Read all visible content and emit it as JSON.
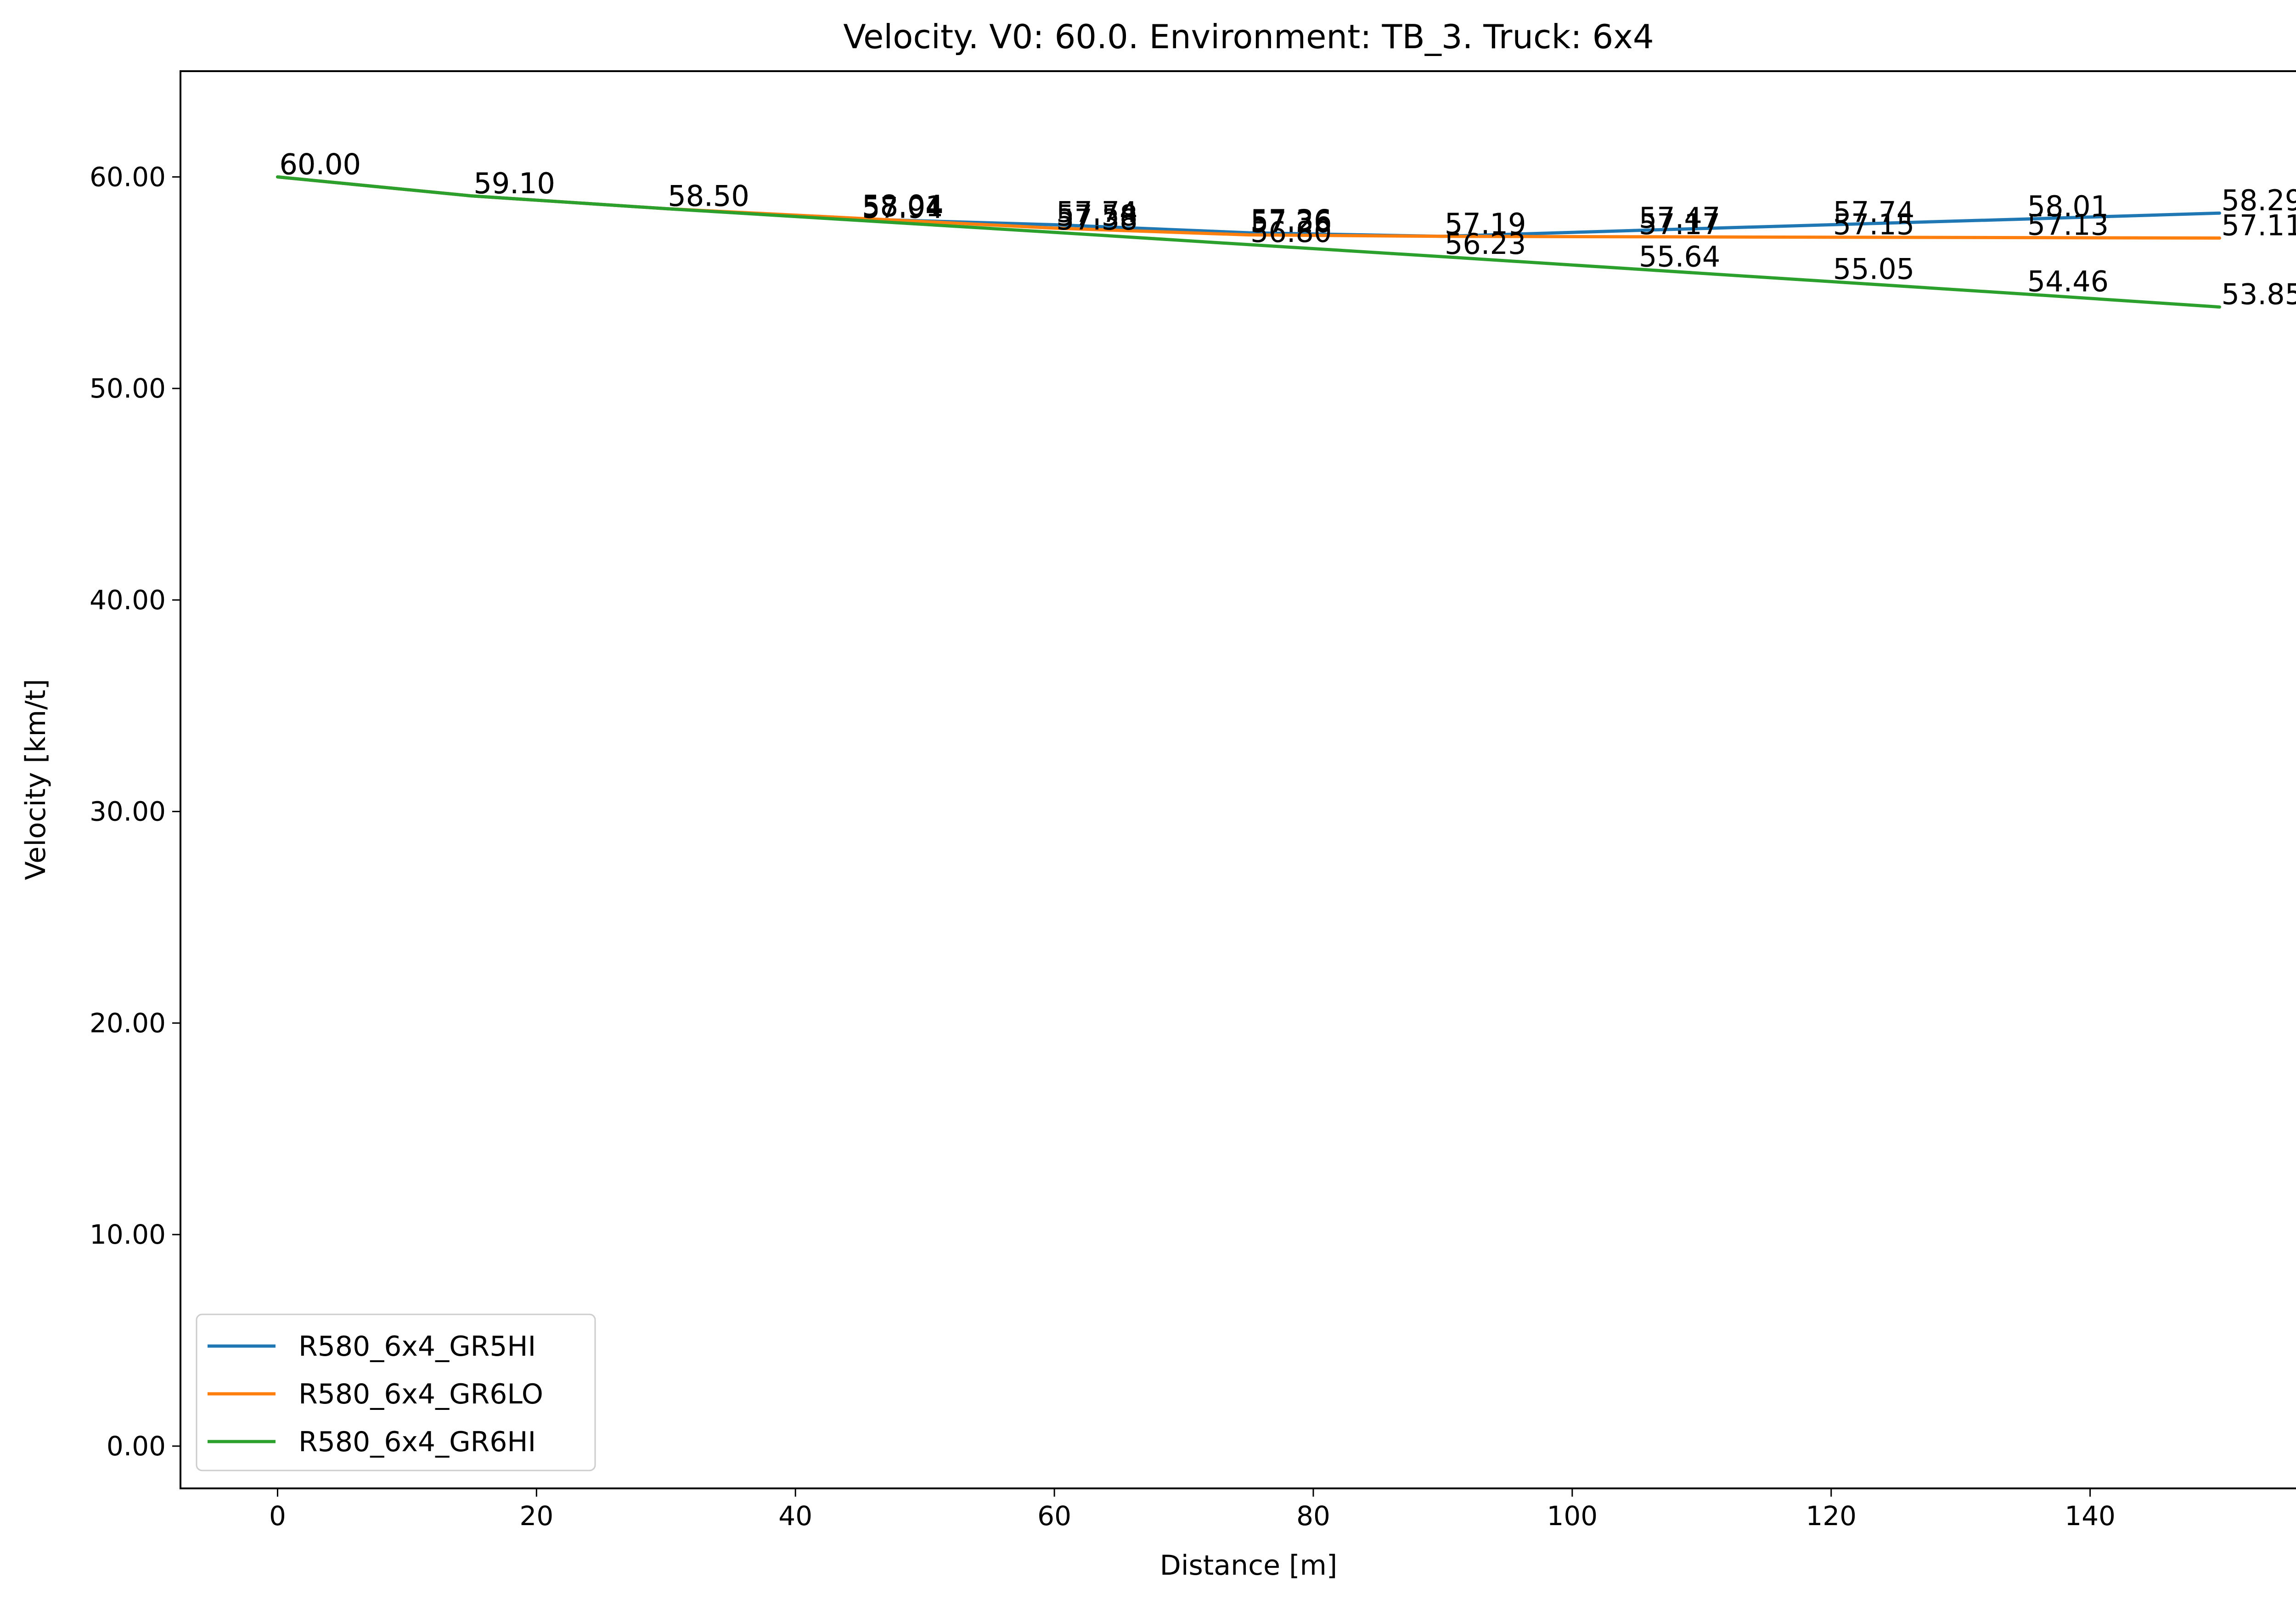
{
  "chart_data": {
    "type": "line",
    "title": "Velocity. V0: 60.0. Environment: TB_3. Truck: 6x4",
    "xlabel": "Distance [m]",
    "ylabel": "Velocity [km/t]",
    "xlim": [
      -7.5,
      157.5
    ],
    "ylim": [
      -2,
      65
    ],
    "xticks": [
      0,
      20,
      40,
      60,
      80,
      100,
      120,
      140
    ],
    "yticks": [
      0,
      10,
      20,
      30,
      40,
      50,
      60
    ],
    "ytick_format": "2dp",
    "grid": false,
    "legend_position": "lower-left",
    "x": [
      0,
      15,
      30,
      45,
      60,
      75,
      90,
      105,
      120,
      135,
      150
    ],
    "series": [
      {
        "name": "R580_6x4_GR5HI",
        "color": "#1f77b4",
        "values": [
          60.0,
          59.1,
          58.5,
          58.01,
          57.74,
          57.36,
          57.19,
          57.47,
          57.74,
          58.01,
          58.29
        ],
        "labels": [
          "60.00",
          "59.10",
          "58.50",
          "58.01",
          "57.74",
          "57.36",
          "57.19",
          "57.47",
          "57.74",
          "58.01",
          "58.29"
        ]
      },
      {
        "name": "R580_6x4_GR6LO",
        "color": "#ff7f0e",
        "values": [
          60.0,
          59.1,
          58.5,
          58.04,
          57.58,
          57.26,
          57.19,
          57.17,
          57.15,
          57.13,
          57.11
        ],
        "labels": [
          "60.00",
          "59.10",
          "58.50",
          "58.04",
          "57.58",
          "57.26",
          "57.19",
          "57.17",
          "57.15",
          "57.13",
          "57.11"
        ]
      },
      {
        "name": "R580_6x4_GR6HI",
        "color": "#2ca02c",
        "values": [
          60.0,
          59.1,
          58.5,
          57.94,
          57.38,
          56.8,
          56.23,
          55.64,
          55.05,
          54.46,
          53.85
        ],
        "labels": [
          "60.00",
          "59.10",
          "58.50",
          "57.94",
          "57.38",
          "56.80",
          "56.23",
          "55.64",
          "55.05",
          "54.46",
          "53.85"
        ]
      }
    ]
  }
}
